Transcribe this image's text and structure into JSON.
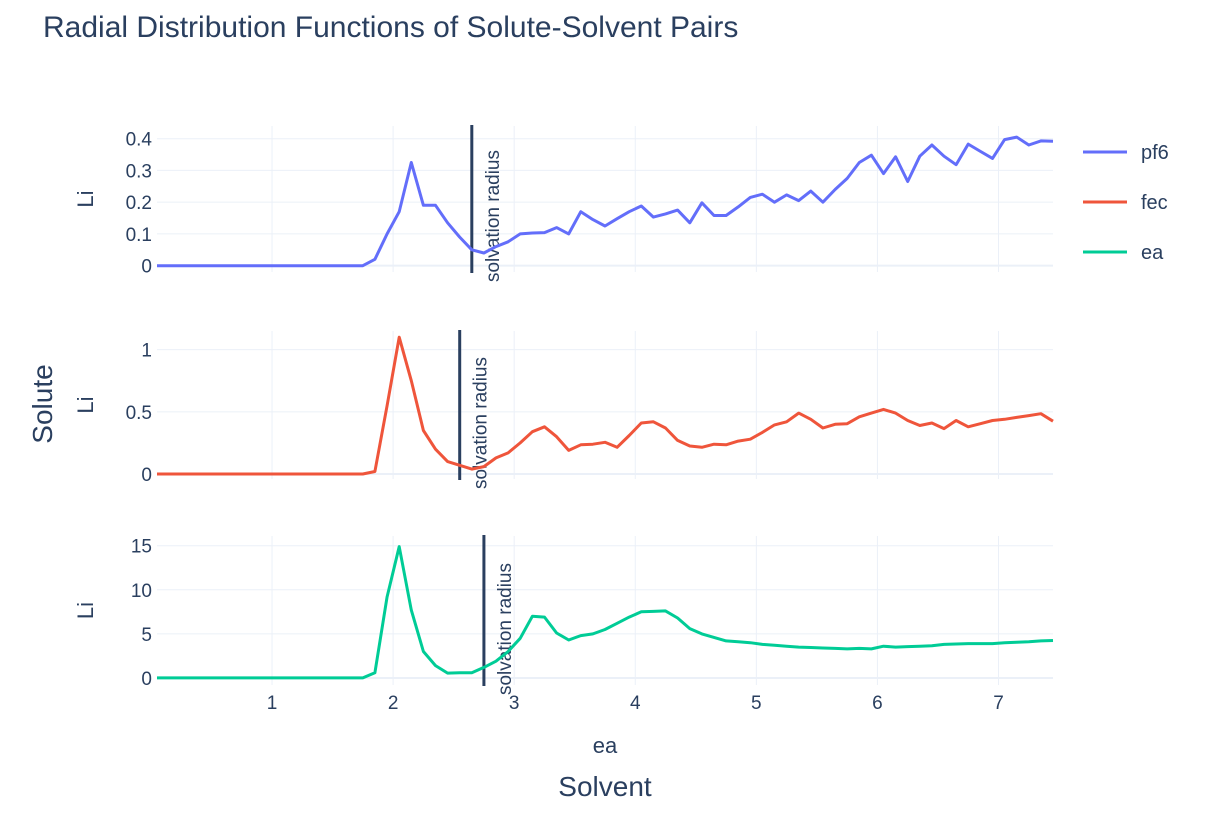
{
  "title": "Radial Distribution Functions of Solute-Solvent Pairs",
  "x_title": "Solvent",
  "y_title": "Solute",
  "colors": {
    "pf6": "#636efa",
    "fec": "#ef553b",
    "ea": "#00cc96",
    "grid": "#ebf0f8",
    "vline": "#2a3f5f",
    "text": "#2a3f5f"
  },
  "chart_data": {
    "type": "line",
    "title": "Radial Distribution Functions of Solute-Solvent Pairs",
    "xlabel": "Solvent",
    "ylabel": "Solute",
    "xlim": [
      0.05,
      7.45
    ],
    "legend_position": "right",
    "grid": true,
    "x_ticks": [
      1,
      2,
      3,
      4,
      5,
      6,
      7
    ],
    "panels": [
      {
        "name": "pf6",
        "row_label": "Li",
        "col_label": "",
        "ylim": [
          -0.02,
          0.44
        ],
        "y_ticks": [
          0,
          0.1,
          0.2,
          0.3,
          0.4
        ],
        "y_tick_labels": [
          "0",
          "0.1",
          "0.2",
          "0.3",
          "0.4"
        ],
        "annotation": {
          "x": 2.65,
          "text": "solvation radius"
        },
        "series": [
          {
            "name": "pf6",
            "points": [
              [
                0.05,
                0
              ],
              [
                1.75,
                0
              ],
              [
                1.85,
                0.02
              ],
              [
                1.95,
                0.1
              ],
              [
                2.05,
                0.17
              ],
              [
                2.15,
                0.325
              ],
              [
                2.25,
                0.19
              ],
              [
                2.35,
                0.19
              ],
              [
                2.45,
                0.135
              ],
              [
                2.55,
                0.09
              ],
              [
                2.65,
                0.05
              ],
              [
                2.75,
                0.04
              ],
              [
                2.85,
                0.06
              ],
              [
                2.95,
                0.075
              ],
              [
                3.05,
                0.1
              ],
              [
                3.15,
                0.103
              ],
              [
                3.25,
                0.104
              ],
              [
                3.35,
                0.12
              ],
              [
                3.45,
                0.1
              ],
              [
                3.55,
                0.17
              ],
              [
                3.65,
                0.145
              ],
              [
                3.75,
                0.125
              ],
              [
                3.85,
                0.148
              ],
              [
                3.95,
                0.17
              ],
              [
                4.05,
                0.188
              ],
              [
                4.15,
                0.153
              ],
              [
                4.25,
                0.163
              ],
              [
                4.35,
                0.175
              ],
              [
                4.45,
                0.135
              ],
              [
                4.55,
                0.198
              ],
              [
                4.65,
                0.158
              ],
              [
                4.75,
                0.158
              ],
              [
                4.85,
                0.185
              ],
              [
                4.95,
                0.215
              ],
              [
                5.05,
                0.225
              ],
              [
                5.15,
                0.2
              ],
              [
                5.25,
                0.223
              ],
              [
                5.35,
                0.205
              ],
              [
                5.45,
                0.235
              ],
              [
                5.55,
                0.2
              ],
              [
                5.65,
                0.24
              ],
              [
                5.75,
                0.275
              ],
              [
                5.85,
                0.325
              ],
              [
                5.95,
                0.348
              ],
              [
                6.05,
                0.29
              ],
              [
                6.15,
                0.343
              ],
              [
                6.25,
                0.265
              ],
              [
                6.35,
                0.345
              ],
              [
                6.45,
                0.38
              ],
              [
                6.55,
                0.345
              ],
              [
                6.65,
                0.318
              ],
              [
                6.75,
                0.383
              ],
              [
                6.85,
                0.36
              ],
              [
                6.95,
                0.338
              ],
              [
                7.05,
                0.397
              ],
              [
                7.15,
                0.405
              ],
              [
                7.25,
                0.38
              ],
              [
                7.35,
                0.393
              ],
              [
                7.45,
                0.392
              ]
            ]
          }
        ]
      },
      {
        "name": "fec",
        "row_label": "Li",
        "col_label": "",
        "ylim": [
          -0.04,
          1.15
        ],
        "y_ticks": [
          0,
          0.5,
          1
        ],
        "y_tick_labels": [
          "0",
          "0.5",
          "1"
        ],
        "annotation": {
          "x": 2.55,
          "text": "solvation radius"
        },
        "series": [
          {
            "name": "fec",
            "points": [
              [
                0.05,
                0
              ],
              [
                1.75,
                0
              ],
              [
                1.85,
                0.02
              ],
              [
                1.95,
                0.55
              ],
              [
                2.05,
                1.1
              ],
              [
                2.15,
                0.75
              ],
              [
                2.25,
                0.35
              ],
              [
                2.35,
                0.2
              ],
              [
                2.45,
                0.1
              ],
              [
                2.55,
                0.07
              ],
              [
                2.65,
                0.04
              ],
              [
                2.75,
                0.06
              ],
              [
                2.85,
                0.13
              ],
              [
                2.95,
                0.17
              ],
              [
                3.05,
                0.25
              ],
              [
                3.15,
                0.34
              ],
              [
                3.25,
                0.38
              ],
              [
                3.35,
                0.3
              ],
              [
                3.45,
                0.19
              ],
              [
                3.55,
                0.235
              ],
              [
                3.65,
                0.24
              ],
              [
                3.75,
                0.255
              ],
              [
                3.85,
                0.215
              ],
              [
                3.95,
                0.31
              ],
              [
                4.05,
                0.41
              ],
              [
                4.15,
                0.42
              ],
              [
                4.25,
                0.37
              ],
              [
                4.35,
                0.27
              ],
              [
                4.45,
                0.225
              ],
              [
                4.55,
                0.215
              ],
              [
                4.65,
                0.24
              ],
              [
                4.75,
                0.235
              ],
              [
                4.85,
                0.265
              ],
              [
                4.95,
                0.28
              ],
              [
                5.05,
                0.335
              ],
              [
                5.15,
                0.395
              ],
              [
                5.25,
                0.42
              ],
              [
                5.35,
                0.49
              ],
              [
                5.45,
                0.44
              ],
              [
                5.55,
                0.37
              ],
              [
                5.65,
                0.4
              ],
              [
                5.75,
                0.405
              ],
              [
                5.85,
                0.46
              ],
              [
                5.95,
                0.49
              ],
              [
                6.05,
                0.52
              ],
              [
                6.15,
                0.49
              ],
              [
                6.25,
                0.43
              ],
              [
                6.35,
                0.39
              ],
              [
                6.45,
                0.41
              ],
              [
                6.55,
                0.365
              ],
              [
                6.65,
                0.43
              ],
              [
                6.75,
                0.38
              ],
              [
                6.85,
                0.405
              ],
              [
                6.95,
                0.43
              ],
              [
                7.05,
                0.44
              ],
              [
                7.15,
                0.455
              ],
              [
                7.25,
                0.47
              ],
              [
                7.35,
                0.485
              ],
              [
                7.45,
                0.425
              ]
            ]
          }
        ]
      },
      {
        "name": "ea",
        "row_label": "Li",
        "col_label": "ea",
        "ylim": [
          -0.8,
          16.1
        ],
        "y_ticks": [
          0,
          5,
          10,
          15
        ],
        "y_tick_labels": [
          "0",
          "5",
          "10",
          "15"
        ],
        "annotation": {
          "x": 2.75,
          "text": "solvation radius"
        },
        "series": [
          {
            "name": "ea",
            "points": [
              [
                0.05,
                0
              ],
              [
                1.75,
                0
              ],
              [
                1.85,
                0.6
              ],
              [
                1.95,
                9.2
              ],
              [
                2.05,
                14.9
              ],
              [
                2.15,
                7.7
              ],
              [
                2.25,
                3.0
              ],
              [
                2.35,
                1.4
              ],
              [
                2.45,
                0.55
              ],
              [
                2.55,
                0.6
              ],
              [
                2.65,
                0.6
              ],
              [
                2.75,
                1.2
              ],
              [
                2.85,
                1.9
              ],
              [
                2.95,
                3.0
              ],
              [
                3.05,
                4.5
              ],
              [
                3.15,
                7.0
              ],
              [
                3.25,
                6.9
              ],
              [
                3.35,
                5.1
              ],
              [
                3.45,
                4.3
              ],
              [
                3.55,
                4.8
              ],
              [
                3.65,
                5.0
              ],
              [
                3.75,
                5.5
              ],
              [
                3.85,
                6.2
              ],
              [
                3.95,
                6.9
              ],
              [
                4.05,
                7.5
              ],
              [
                4.15,
                7.55
              ],
              [
                4.25,
                7.6
              ],
              [
                4.35,
                6.8
              ],
              [
                4.45,
                5.6
              ],
              [
                4.55,
                5.0
              ],
              [
                4.65,
                4.6
              ],
              [
                4.75,
                4.2
              ],
              [
                4.85,
                4.1
              ],
              [
                4.95,
                4.0
              ],
              [
                5.05,
                3.8
              ],
              [
                5.15,
                3.7
              ],
              [
                5.25,
                3.6
              ],
              [
                5.35,
                3.5
              ],
              [
                5.45,
                3.45
              ],
              [
                5.55,
                3.4
              ],
              [
                5.65,
                3.35
              ],
              [
                5.75,
                3.3
              ],
              [
                5.85,
                3.35
              ],
              [
                5.95,
                3.3
              ],
              [
                6.05,
                3.6
              ],
              [
                6.15,
                3.5
              ],
              [
                6.25,
                3.55
              ],
              [
                6.35,
                3.6
              ],
              [
                6.45,
                3.65
              ],
              [
                6.55,
                3.8
              ],
              [
                6.65,
                3.85
              ],
              [
                6.75,
                3.9
              ],
              [
                6.85,
                3.9
              ],
              [
                6.95,
                3.9
              ],
              [
                7.05,
                4.0
              ],
              [
                7.15,
                4.05
              ],
              [
                7.25,
                4.1
              ],
              [
                7.35,
                4.2
              ],
              [
                7.45,
                4.25
              ]
            ]
          }
        ]
      }
    ],
    "legend": [
      "pf6",
      "fec",
      "ea"
    ]
  }
}
